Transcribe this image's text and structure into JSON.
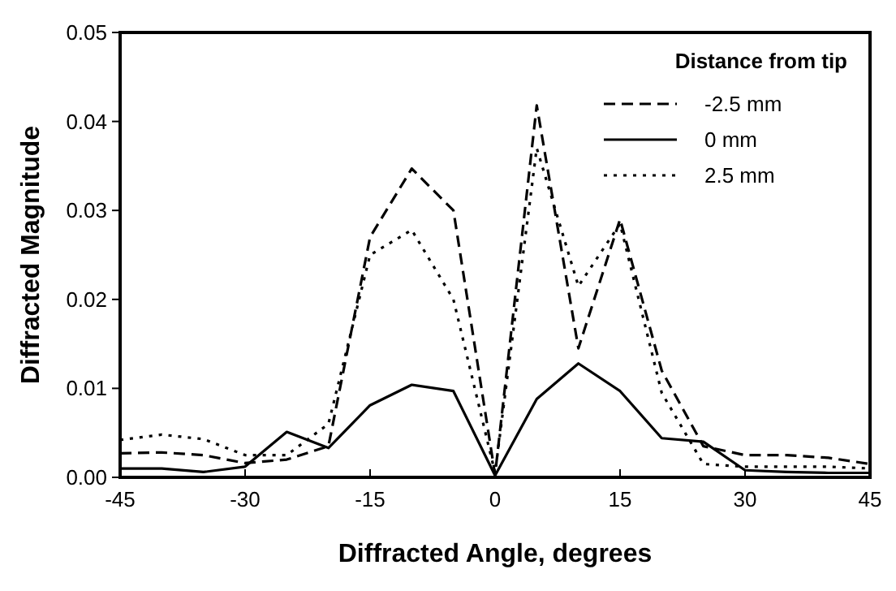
{
  "chart_data": {
    "type": "line",
    "xlabel": "Diffracted Angle, degrees",
    "ylabel": "Diffracted Magnitude",
    "legend_title": "Distance from tip",
    "legend": "top right",
    "grid": false,
    "x": [
      -45,
      -40,
      -35,
      -30,
      -25,
      -20,
      -15,
      -10,
      -5,
      0,
      5,
      10,
      15,
      20,
      25,
      30,
      35,
      40,
      45
    ],
    "xlim": [
      -45,
      45
    ],
    "xticks": [
      -45,
      -30,
      -15,
      0,
      15,
      30,
      45
    ],
    "ylim": [
      0,
      0.05
    ],
    "yticks": [
      {
        "value": 0,
        "label": "0.00"
      },
      0.01,
      0.02,
      0.03,
      0.04,
      0.05
    ],
    "series": [
      {
        "name": "-2.5 mm",
        "color": "#000000",
        "line_style": "dashed",
        "values": [
          0.0027,
          0.0028,
          0.0025,
          0.0016,
          0.002,
          0.0035,
          0.027,
          0.0347,
          0.03,
          0.0003,
          0.0418,
          0.0145,
          0.029,
          0.012,
          0.0035,
          0.0025,
          0.0025,
          0.0022,
          0.0015
        ]
      },
      {
        "name": "0 mm",
        "color": "#000000",
        "line_style": "solid",
        "values": [
          0.001,
          0.001,
          0.0006,
          0.0012,
          0.0051,
          0.0033,
          0.0081,
          0.0104,
          0.0097,
          0.0002,
          0.0088,
          0.0128,
          0.0097,
          0.0044,
          0.004,
          0.0008,
          0.0006,
          0.0005,
          0.0005
        ]
      },
      {
        "name": "2.5 mm",
        "color": "#000000",
        "line_style": "dotted",
        "values": [
          0.0042,
          0.0048,
          0.0043,
          0.0025,
          0.0025,
          0.006,
          0.025,
          0.0278,
          0.02,
          0.0005,
          0.037,
          0.0215,
          0.0285,
          0.0095,
          0.0015,
          0.0012,
          0.0012,
          0.0012,
          0.001
        ]
      }
    ]
  }
}
